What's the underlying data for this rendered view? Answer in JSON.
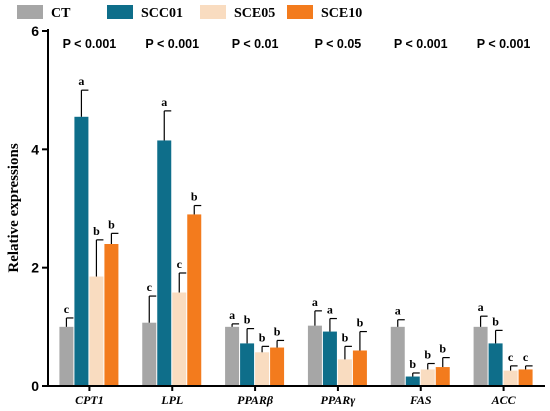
{
  "chart_data": {
    "type": "bar",
    "ylabel": "Relative expressions",
    "ylim": [
      0,
      6
    ],
    "yticks": [
      0,
      2,
      4,
      6
    ],
    "grid": false,
    "legend_position": "top",
    "categories": [
      "CPT1",
      "LPL",
      "PPARβ",
      "PPARγ",
      "FAS",
      "ACC"
    ],
    "pvalues": [
      "P < 0.001",
      "P < 0.001",
      "P < 0.01",
      "P < 0.05",
      "P < 0.001",
      "P < 0.001"
    ],
    "series": [
      {
        "name": "CT",
        "color": "#a6a6a6",
        "values": [
          1.0,
          1.07,
          1.0,
          1.02,
          1.0,
          1.0
        ],
        "errors": [
          0.15,
          0.45,
          0.05,
          0.25,
          0.12,
          0.18
        ],
        "letters": [
          "c",
          "c",
          "a",
          "a",
          "a",
          "a"
        ]
      },
      {
        "name": "SCC01",
        "color": "#0e6e8a",
        "values": [
          4.55,
          4.15,
          0.72,
          0.92,
          0.16,
          0.72
        ],
        "errors": [
          0.45,
          0.5,
          0.25,
          0.22,
          0.06,
          0.22
        ],
        "letters": [
          "a",
          "a",
          "b",
          "a",
          "b",
          "b"
        ]
      },
      {
        "name": "SCE05",
        "color": "#f9dcc0",
        "values": [
          1.85,
          1.58,
          0.57,
          0.45,
          0.28,
          0.26
        ],
        "errors": [
          0.62,
          0.33,
          0.1,
          0.22,
          0.1,
          0.08
        ],
        "letters": [
          "b",
          "c",
          "b",
          "b",
          "b",
          "c"
        ]
      },
      {
        "name": "SCE10",
        "color": "#f37b1d",
        "values": [
          2.4,
          2.9,
          0.65,
          0.6,
          0.32,
          0.28
        ],
        "errors": [
          0.18,
          0.15,
          0.12,
          0.32,
          0.16,
          0.06
        ],
        "letters": [
          "b",
          "b",
          "b",
          "b",
          "b",
          "c"
        ]
      }
    ]
  }
}
